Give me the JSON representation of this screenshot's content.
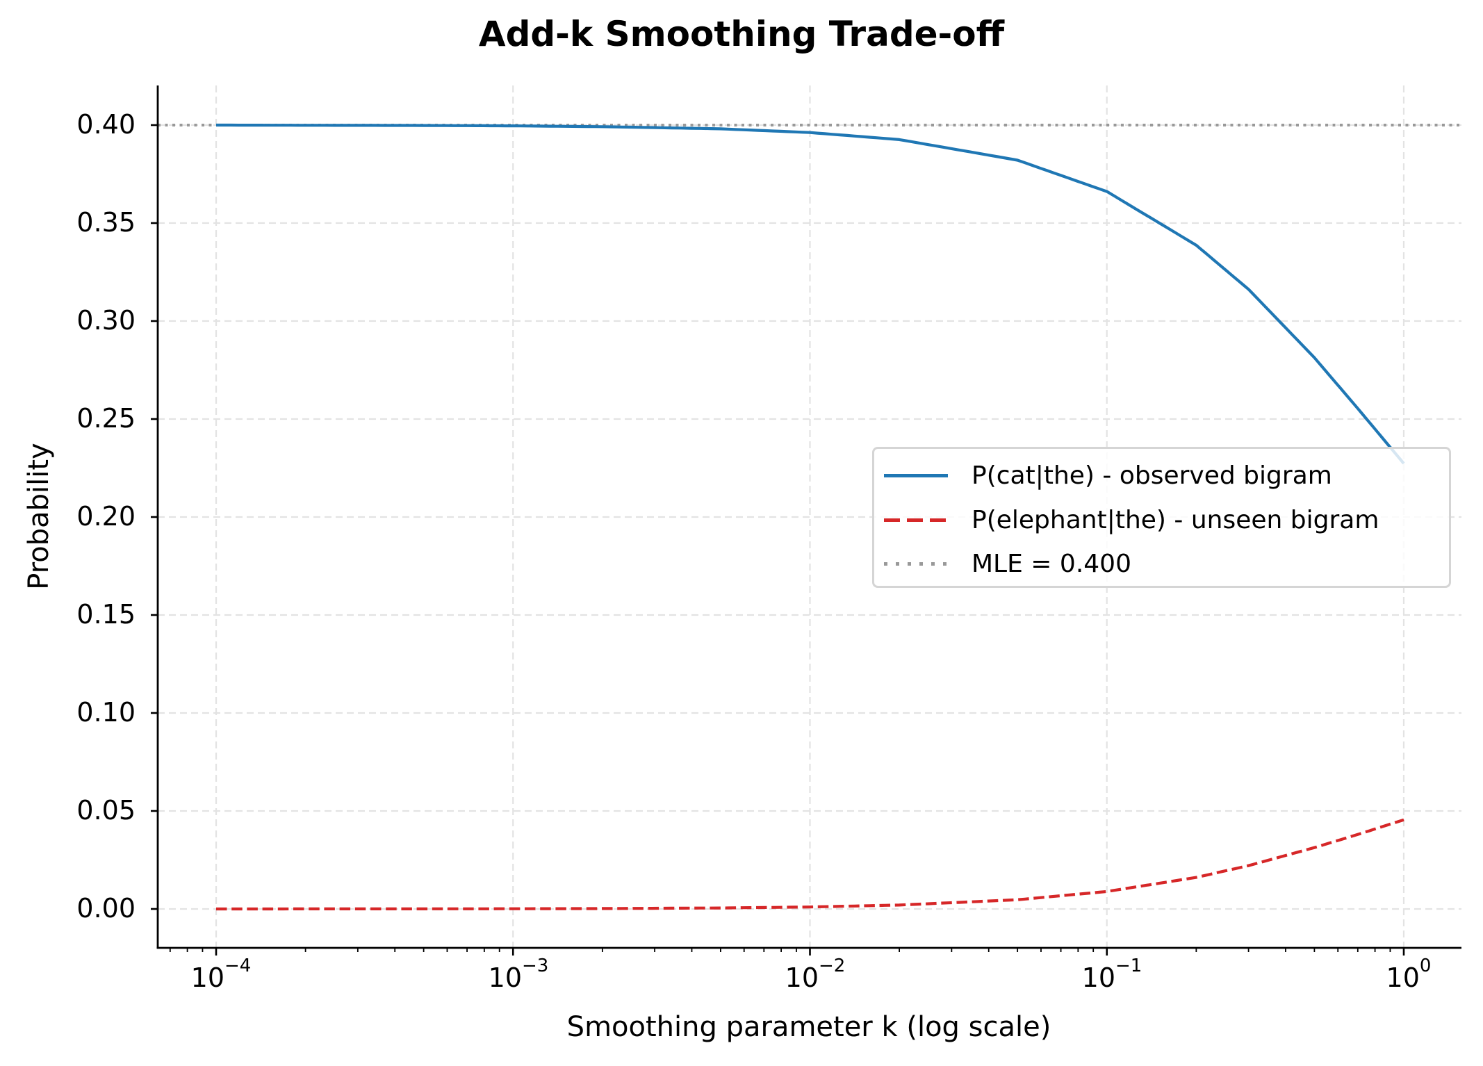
{
  "chart_data": {
    "type": "line",
    "title": "Add-k Smoothing Trade-off",
    "xlabel": "Smoothing parameter k (log scale)",
    "ylabel": "Probability",
    "xscale": "log",
    "xlim": [
      7e-05,
      1.5
    ],
    "ylim": [
      -0.02,
      0.42
    ],
    "grid": true,
    "legend_position": "center right",
    "x_ticks": [
      {
        "base": "10",
        "exp": "−4",
        "value": 0.0001
      },
      {
        "base": "10",
        "exp": "−3",
        "value": 0.001
      },
      {
        "base": "10",
        "exp": "−2",
        "value": 0.01
      },
      {
        "base": "10",
        "exp": "−1",
        "value": 0.1
      },
      {
        "base": "10",
        "exp": "0",
        "value": 1
      }
    ],
    "y_ticks": [
      "0.00",
      "0.05",
      "0.10",
      "0.15",
      "0.20",
      "0.25",
      "0.30",
      "0.35",
      "0.40"
    ],
    "x": [
      0.0001,
      0.0002,
      0.0005,
      0.001,
      0.002,
      0.005,
      0.01,
      0.02,
      0.05,
      0.1,
      0.2,
      0.3,
      0.5,
      0.7,
      1.0
    ],
    "series": [
      {
        "name": "P(cat|the) - observed bigram",
        "color": "#1f77b4",
        "style": "solid",
        "values": [
          0.4,
          0.3999,
          0.3998,
          0.3996,
          0.3992,
          0.3981,
          0.3962,
          0.3926,
          0.3821,
          0.3661,
          0.3387,
          0.3162,
          0.2813,
          0.2554,
          0.2273
        ]
      },
      {
        "name": "P(elephant|the) - unseen bigram",
        "color": "#d62728",
        "style": "dashed",
        "values": [
          1e-05,
          2e-05,
          5e-05,
          0.0001,
          0.0002,
          0.0005,
          0.001,
          0.002,
          0.0047,
          0.0089,
          0.0161,
          0.0221,
          0.0313,
          0.038,
          0.0455
        ]
      },
      {
        "name": "MLE = 0.400",
        "color": "#999999",
        "style": "dotted",
        "type": "hline",
        "value": 0.4
      }
    ]
  },
  "legend": {
    "items": [
      {
        "label": "P(cat|the) - observed bigram",
        "color": "#1f77b4"
      },
      {
        "label": "P(elephant|the) - unseen bigram",
        "color": "#d62728"
      },
      {
        "label": "MLE = 0.400",
        "color": "#999999"
      }
    ]
  }
}
